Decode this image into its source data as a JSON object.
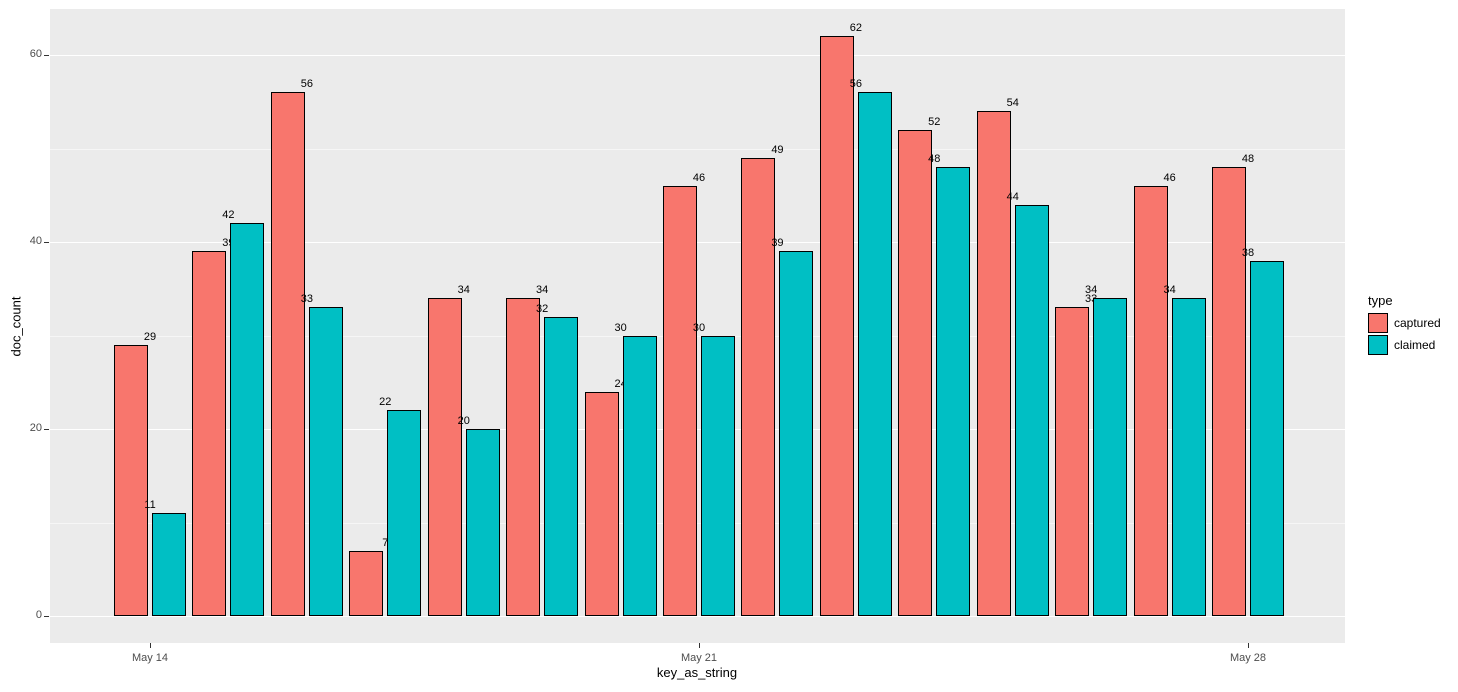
{
  "figure": {
    "background": "#FFFFFF",
    "panel_background": "#EBEBEB",
    "gridline_color": "#FFFFFF",
    "axis_text_color": "#4D4D4D"
  },
  "chart_data": {
    "type": "bar",
    "title": "",
    "xlabel": "key_as_string",
    "ylabel": "doc_count",
    "categories": [
      "May 14",
      "May 15",
      "May 16",
      "May 17",
      "May 18",
      "May 19",
      "May 20",
      "May 21",
      "May 22",
      "May 23",
      "May 24",
      "May 25",
      "May 26",
      "May 27",
      "May 28"
    ],
    "series": [
      {
        "name": "captured",
        "color": "#F8766D",
        "values": [
          29,
          39,
          56,
          7,
          34,
          34,
          24,
          46,
          49,
          62,
          52,
          54,
          33,
          46,
          48
        ]
      },
      {
        "name": "claimed",
        "color": "#00BFC4",
        "values": [
          11,
          42,
          33,
          22,
          20,
          32,
          30,
          30,
          39,
          56,
          48,
          44,
          34,
          34,
          38
        ]
      }
    ],
    "bar_value_labels": true,
    "y_axis": {
      "ticks": [
        0,
        20,
        40,
        60
      ],
      "minor_ticks": [
        10,
        30,
        50
      ],
      "range": [
        0,
        65
      ]
    },
    "x_axis": {
      "tick_labels": [
        "May 14",
        "May 21",
        "May 28"
      ],
      "tick_category_indexes": [
        0,
        7,
        14
      ]
    },
    "legend": {
      "title": "type",
      "position": "right"
    },
    "grid": {
      "horizontal": true,
      "vertical": false
    }
  }
}
